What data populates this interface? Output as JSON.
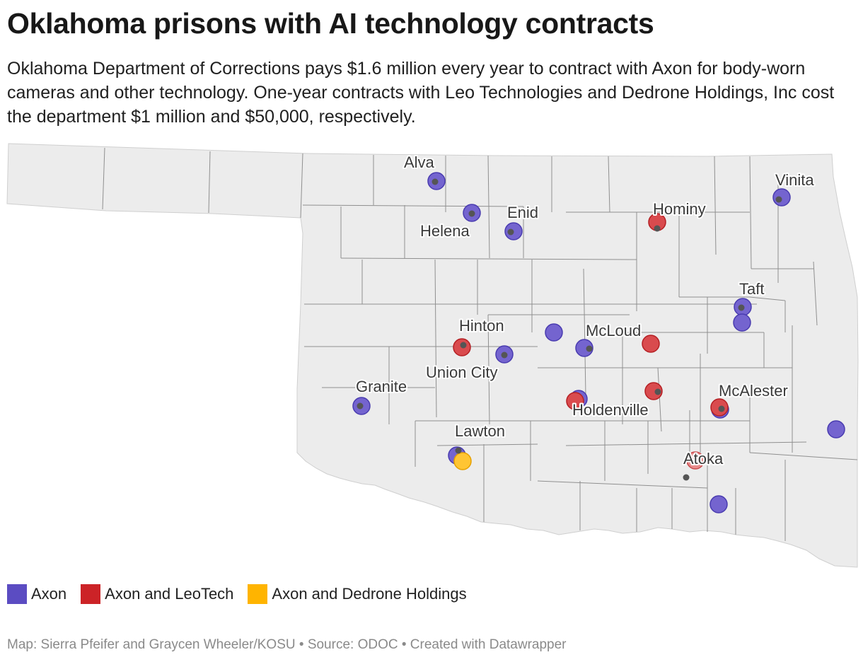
{
  "title": "Oklahoma prisons with AI technology contracts",
  "description": "Oklahoma Department of Corrections pays $1.6 million every year to contract with Axon for body-worn cameras and other technology. One-year contracts with Leo Technologies and Dedrone Holdings, Inc cost the department $1 million and $50,000, respectively.",
  "legend": [
    {
      "label": "Axon",
      "color": "#5b4cc2"
    },
    {
      "label": "Axon and LeoTech",
      "color": "#cc2327"
    },
    {
      "label": "Axon and Dedrone Holdings",
      "color": "#ffb400"
    }
  ],
  "cities": [
    "Alva",
    "Vinita",
    "Enid",
    "Helena",
    "Hominy",
    "Taft",
    "Hinton",
    "McLoud",
    "Union City",
    "Granite",
    "McAlester",
    "Holdenville",
    "Lawton",
    "Atoka"
  ],
  "footer": "Map: Sierra Pfeifer and Graycen Wheeler/KOSU • Source: ODOC • Created with Datawrapper",
  "colors": {
    "land": "#ececec",
    "county_border": "#8f8f8f",
    "pin": "#555555"
  }
}
